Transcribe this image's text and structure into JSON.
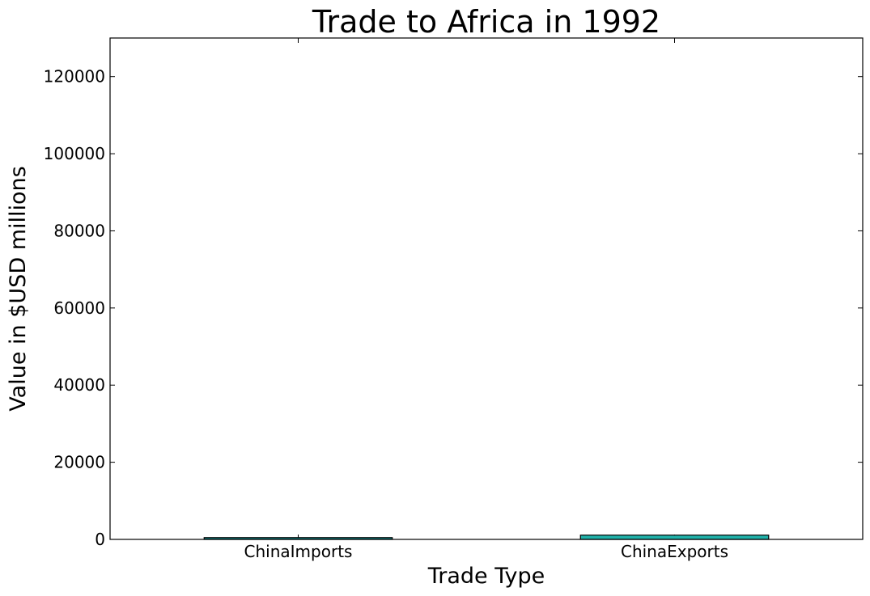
{
  "chart_data": {
    "type": "bar",
    "title": "Trade to Africa in 1992",
    "xlabel": "Trade Type",
    "ylabel": "Value in $USD millions",
    "categories": [
      "ChinaImports",
      "ChinaExports"
    ],
    "values": [
      470,
      1100
    ],
    "ylim": [
      0,
      130000
    ],
    "yticks": [
      0,
      20000,
      40000,
      60000,
      80000,
      100000,
      120000
    ],
    "bar_colors": [
      "#0f8f8f",
      "#20b2aa"
    ],
    "grid": false,
    "legend": "none"
  }
}
